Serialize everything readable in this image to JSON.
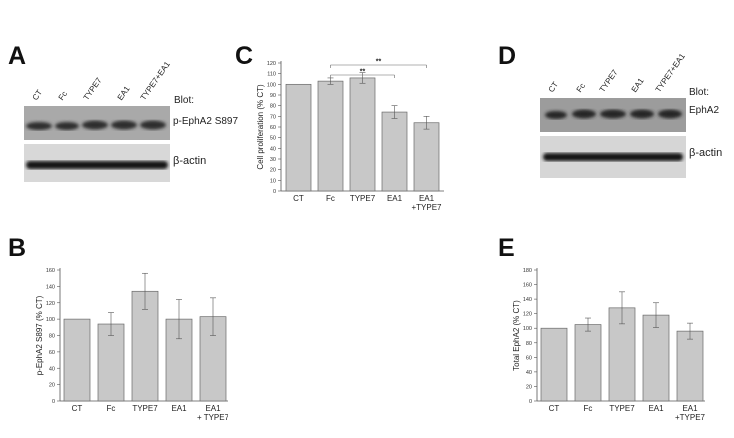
{
  "panels": {
    "A": {
      "letter": "A",
      "lanes": [
        "CT",
        "Fc",
        "TYPE7",
        "EA1",
        "TYPE7+EA1"
      ],
      "blot_header": "Blot:",
      "row1_label": "p-EphA2 S897",
      "row2_label": "β-actin"
    },
    "D": {
      "letter": "D",
      "lanes": [
        "CT",
        "Fc",
        "TYPE7",
        "EA1",
        "TYPE7+EA1"
      ],
      "blot_header": "Blot:",
      "row1_label": "EphA2",
      "row2_label": "β-actin"
    },
    "B": {
      "letter": "B"
    },
    "C": {
      "letter": "C"
    },
    "E": {
      "letter": "E"
    }
  },
  "chart_data": [
    {
      "id": "C",
      "type": "bar",
      "categories": [
        "CT",
        "Fc",
        "TYPE7",
        "EA1",
        "EA1\n+TYPE7"
      ],
      "values": [
        100,
        103,
        106,
        74,
        64
      ],
      "errors": [
        0,
        3,
        5,
        6,
        6
      ],
      "ylabel": "Cell proliferation (% CT)",
      "ylim": [
        0,
        120
      ],
      "yticks": [
        0,
        10,
        20,
        30,
        40,
        50,
        60,
        70,
        80,
        90,
        100,
        110,
        120
      ],
      "significance": [
        {
          "from": 1,
          "to": 3,
          "label": "**"
        },
        {
          "from": 1,
          "to": 4,
          "label": "**"
        }
      ]
    },
    {
      "id": "B",
      "type": "bar",
      "categories": [
        "CT",
        "Fc",
        "TYPE7",
        "EA1",
        "EA1\n+ TYPE7"
      ],
      "values": [
        100,
        94,
        134,
        100,
        103
      ],
      "errors": [
        0,
        14,
        22,
        24,
        23
      ],
      "ylabel": "p-EphA2 S897 (% CT)",
      "ylim": [
        0,
        160
      ],
      "yticks": [
        0,
        20,
        40,
        60,
        80,
        100,
        120,
        140,
        160
      ]
    },
    {
      "id": "E",
      "type": "bar",
      "categories": [
        "CT",
        "Fc",
        "TYPE7",
        "EA1",
        "EA1\n+TYPE7"
      ],
      "values": [
        100,
        105,
        128,
        118,
        96
      ],
      "errors": [
        0,
        9,
        22,
        17,
        11
      ],
      "ylabel": "Total EphA2 (% CT)",
      "ylim": [
        0,
        180
      ],
      "yticks": [
        0,
        20,
        40,
        60,
        80,
        100,
        120,
        140,
        160,
        180
      ]
    }
  ]
}
